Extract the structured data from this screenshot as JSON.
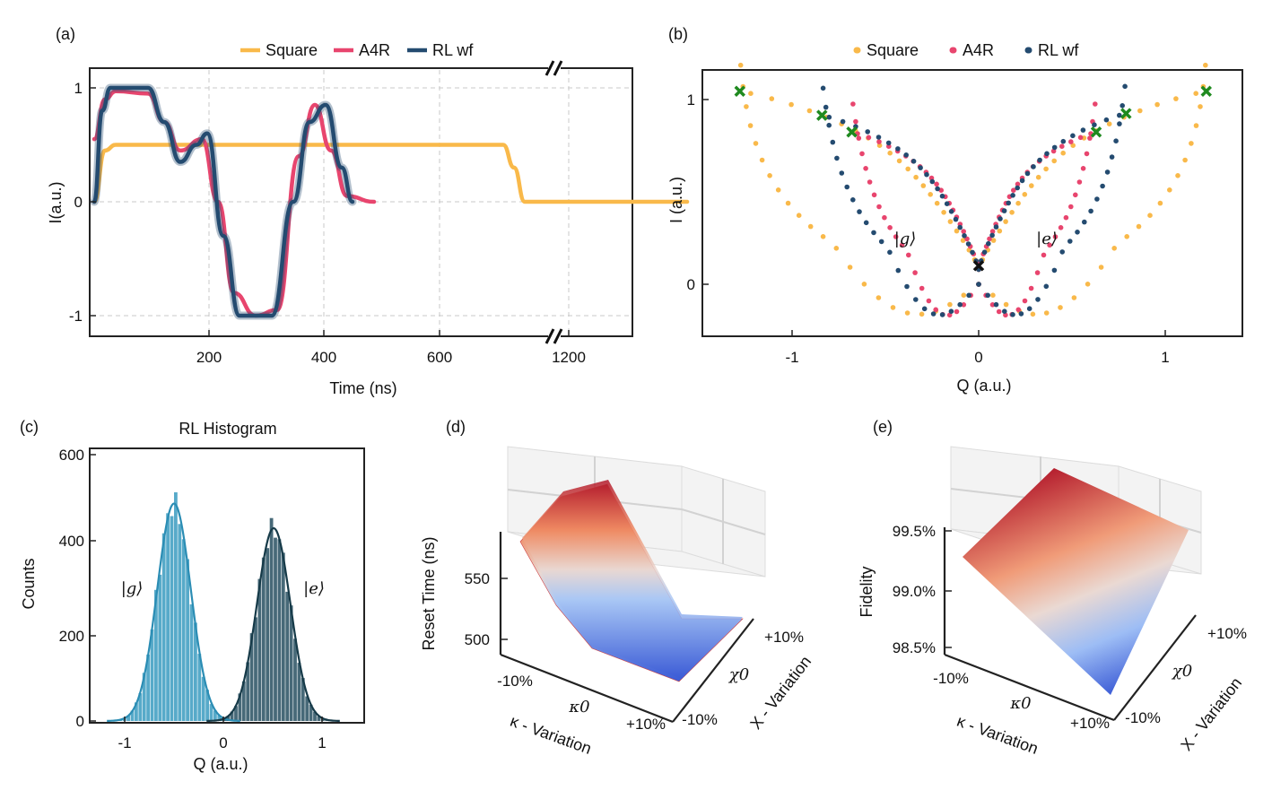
{
  "chart_data": [
    {
      "panel": "(a)",
      "type": "line",
      "xlabel": "Time (ns)",
      "ylabel": "I(a.u.)",
      "xticks": [
        "200",
        "400",
        "600",
        "1200"
      ],
      "yticks": [
        "1",
        "0",
        "-1"
      ],
      "broken_x_axis": true,
      "grid": true,
      "legend_position": "top",
      "series": [
        {
          "name": "Square",
          "color": "#f9b94a",
          "x": [
            0,
            20,
            40,
            100,
            300,
            500,
            760,
            780,
            800,
            1200,
            1400
          ],
          "y": [
            0.0,
            0.45,
            0.5,
            0.5,
            0.5,
            0.5,
            0.5,
            0.3,
            0.0,
            0.0,
            0.0
          ]
        },
        {
          "name": "A4R",
          "color": "#e8456e",
          "x": [
            0,
            20,
            40,
            100,
            130,
            160,
            200,
            230,
            260,
            300,
            340,
            380,
            410,
            440,
            470,
            520
          ],
          "y": [
            0.55,
            0.9,
            0.97,
            0.95,
            0.7,
            0.45,
            0.55,
            0.0,
            -0.8,
            -1.0,
            -0.95,
            0.4,
            0.85,
            0.45,
            0.05,
            0.0
          ]
        },
        {
          "name": "RL wf",
          "color": "#244b70",
          "x": [
            0,
            15,
            30,
            100,
            130,
            160,
            190,
            210,
            240,
            270,
            300,
            330,
            370,
            400,
            430,
            460,
            480
          ],
          "y": [
            0.0,
            0.8,
            1.0,
            1.0,
            0.7,
            0.35,
            0.5,
            0.6,
            -0.3,
            -1.0,
            -1.0,
            -1.0,
            0.0,
            0.7,
            0.85,
            0.3,
            0.0
          ]
        }
      ]
    },
    {
      "panel": "(b)",
      "type": "scatter",
      "xlabel": "Q (a.u.)",
      "ylabel": "I (a.u.)",
      "xticks": [
        "-1",
        "0",
        "1"
      ],
      "yticks": [
        "1",
        "0"
      ],
      "xlim": [
        -1.45,
        1.4
      ],
      "ylim": [
        -0.25,
        1.15
      ],
      "legend_position": "top",
      "annotations": [
        "|g⟩",
        "|e⟩"
      ],
      "series": [
        {
          "name": "Square",
          "color": "#f9b94a",
          "loop_left": [
            [
              -1.28,
              1.04
            ],
            [
              -0.6,
              0.55
            ],
            [
              0,
              0.08
            ]
          ],
          "loop_right": [
            [
              1.22,
              1.04
            ],
            [
              0.6,
              0.55
            ],
            [
              0,
              0.08
            ]
          ]
        },
        {
          "name": "A4R",
          "color": "#e8456e",
          "loop_left": [
            [
              -0.68,
              0.82
            ],
            [
              -0.3,
              0.45
            ],
            [
              0,
              0.08
            ]
          ],
          "loop_right": [
            [
              0.63,
              0.82
            ],
            [
              0.3,
              0.45
            ],
            [
              0,
              0.08
            ]
          ]
        },
        {
          "name": "RL wf",
          "color": "#244b70",
          "loop_left": [
            [
              -0.84,
              0.91
            ],
            [
              -0.4,
              0.5
            ],
            [
              0,
              0.08
            ]
          ],
          "loop_right": [
            [
              0.79,
              0.92
            ],
            [
              0.4,
              0.5
            ],
            [
              0,
              0.08
            ]
          ]
        }
      ],
      "markers": {
        "green": [
          [
            -1.28,
            1.04
          ],
          [
            -0.84,
            0.91
          ],
          [
            -0.68,
            0.82
          ],
          [
            1.22,
            1.04
          ],
          [
            0.79,
            0.92
          ],
          [
            0.63,
            0.82
          ]
        ],
        "black": [
          [
            0,
            0.1
          ]
        ]
      }
    },
    {
      "panel": "(c)",
      "type": "bar",
      "title": "RL Histogram",
      "xlabel": "Q (a.u.)",
      "ylabel": "Counts",
      "xticks": [
        "-1",
        "0",
        "1"
      ],
      "yticks": [
        "0",
        "200",
        "400",
        "600"
      ],
      "xlim": [
        -1.35,
        1.45
      ],
      "ylim": [
        0,
        600
      ],
      "annotations": [
        "|g⟩",
        "|e⟩"
      ],
      "series": [
        {
          "name": "|g⟩",
          "color": "#3a9bbf",
          "mean": -0.5,
          "std": 0.17,
          "peak": 485
        },
        {
          "name": "|e⟩",
          "color": "#274f60",
          "mean": 0.51,
          "std": 0.17,
          "peak": 430
        }
      ]
    },
    {
      "panel": "(d)",
      "type": "surface",
      "zlabel": "Reset Time (ns)",
      "xlabel": "κ - Variation",
      "ylabel": "X - Variation",
      "xticks": [
        "-10%",
        "κ0",
        "+10%"
      ],
      "yticks": [
        "-10%",
        "χ0",
        "+10%"
      ],
      "zticks": [
        "500",
        "550"
      ],
      "zrange": [
        480,
        585
      ]
    },
    {
      "panel": "(e)",
      "type": "surface",
      "zlabel": "Fidelity",
      "xlabel": "κ - Variation",
      "ylabel": "X - Variation",
      "xticks": [
        "-10%",
        "κ0",
        "+10%"
      ],
      "yticks": [
        "-10%",
        "χ0",
        "+10%"
      ],
      "zticks": [
        "98.5%",
        "99.0%",
        "99.5%"
      ],
      "zrange": [
        98.4,
        99.7
      ]
    }
  ]
}
